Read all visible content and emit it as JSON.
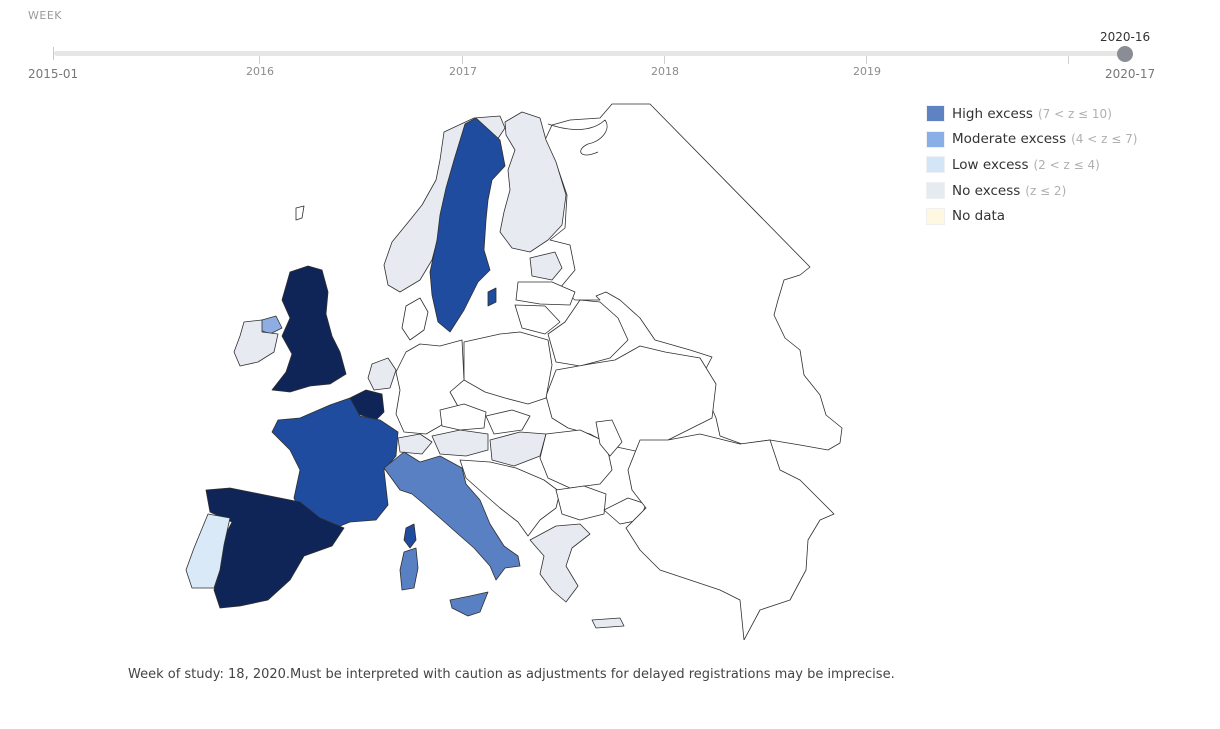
{
  "slider": {
    "title": "WEEK",
    "start_label": "2015-01",
    "end_label": "2020-17",
    "current_label": "2020-16",
    "year_ticks": [
      "2016",
      "2017",
      "2018",
      "2019"
    ]
  },
  "legend": {
    "items": [
      {
        "label": "High excess",
        "range": "(7 < z ≤ 10)",
        "color": "#5e82c2"
      },
      {
        "label": "Moderate excess",
        "range": "(4 < z ≤ 7)",
        "color": "#8aaee6"
      },
      {
        "label": "Low excess",
        "range": "(2 < z ≤ 4)",
        "color": "#d3e6f7"
      },
      {
        "label": "No excess",
        "range": "(z ≤ 2)",
        "color": "#e6ebf1"
      },
      {
        "label": "No data",
        "range": "",
        "color": "#fdf8df"
      }
    ]
  },
  "map_colors": {
    "extraordinary": "#0f2557",
    "very_high": "#1f4c9e",
    "high": "#5a80c4",
    "moderate": "#8eaee3",
    "low": "#d9e9f8",
    "none": "#e7ebf1",
    "outside": "#ffffff"
  },
  "footnote": "Week of study: 18, 2020.Must be interpreted with caution as adjustments for delayed registrations may be imprecise."
}
